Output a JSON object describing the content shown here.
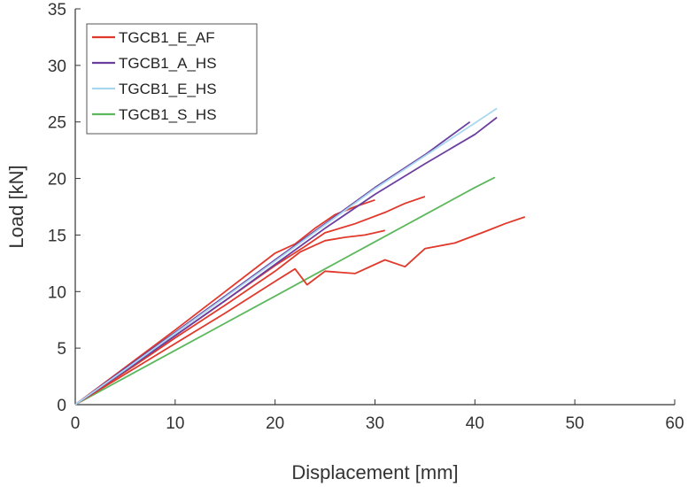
{
  "chart_data": {
    "type": "line",
    "title": "",
    "xlabel": "Displacement [mm]",
    "ylabel": "Load [kN]",
    "xlim": [
      0,
      60
    ],
    "ylim": [
      0,
      35
    ],
    "xticks": [
      0,
      10,
      20,
      30,
      40,
      50,
      60
    ],
    "yticks": [
      0,
      5,
      10,
      15,
      20,
      25,
      30,
      35
    ],
    "grid": false,
    "legend_position": "top-left",
    "legend": [
      {
        "name": "TGCB1_E_AF",
        "color": "#e0392b"
      },
      {
        "name": "TGCB1_A_HS",
        "color": "#6b3fa0"
      },
      {
        "name": "TGCB1_E_HS",
        "color": "#a8d8ef"
      },
      {
        "name": "TGCB1_S_HS",
        "color": "#5cb85c"
      }
    ],
    "series": [
      {
        "name": "TGCB1_E_AF",
        "color": "#e0392b",
        "x": [
          0,
          5,
          10,
          15,
          20,
          22,
          24,
          26,
          28,
          30
        ],
        "y": [
          0,
          3.3,
          6.6,
          10.0,
          13.4,
          14.2,
          15.6,
          16.8,
          17.5,
          18.1
        ]
      },
      {
        "name": "TGCB1_E_AF",
        "color": "#e0392b",
        "x": [
          0,
          5,
          10,
          15,
          20,
          23,
          25,
          28,
          31,
          33,
          35
        ],
        "y": [
          0,
          3.0,
          6.1,
          9.2,
          12.3,
          14.0,
          15.2,
          16.0,
          17.0,
          17.8,
          18.4
        ]
      },
      {
        "name": "TGCB1_E_AF",
        "color": "#e0392b",
        "x": [
          0,
          5,
          10,
          15,
          20,
          22.5,
          25,
          27,
          29,
          30,
          31
        ],
        "y": [
          0,
          2.9,
          5.9,
          8.8,
          11.8,
          13.5,
          14.5,
          14.8,
          15.0,
          15.2,
          15.4
        ]
      },
      {
        "name": "TGCB1_E_AF",
        "color": "#e0392b",
        "x": [
          0,
          5,
          10,
          15,
          20,
          22,
          23.2,
          25,
          28,
          31,
          33,
          35,
          38,
          41,
          43,
          45
        ],
        "y": [
          0,
          2.7,
          5.4,
          8.1,
          10.9,
          12.0,
          10.6,
          11.8,
          11.6,
          12.8,
          12.2,
          13.8,
          14.3,
          15.3,
          16.0,
          16.6
        ]
      },
      {
        "name": "TGCB1_A_HS",
        "color": "#6b3fa0",
        "x": [
          0,
          5,
          10,
          15,
          20,
          25,
          30,
          35,
          39.5
        ],
        "y": [
          0,
          3.2,
          6.4,
          9.6,
          12.8,
          16.0,
          19.2,
          22.1,
          25.0
        ]
      },
      {
        "name": "TGCB1_A_HS",
        "color": "#6b3fa0",
        "x": [
          0,
          5,
          10,
          15,
          20,
          25,
          30,
          35,
          40,
          42.2
        ],
        "y": [
          0,
          3.0,
          6.1,
          9.2,
          12.4,
          15.6,
          18.6,
          21.3,
          23.9,
          25.4
        ]
      },
      {
        "name": "TGCB1_E_HS",
        "color": "#a8d8ef",
        "x": [
          0,
          5,
          10,
          15,
          20,
          25,
          30,
          35,
          40,
          42.2
        ],
        "y": [
          0,
          3.1,
          6.3,
          9.5,
          12.7,
          15.9,
          19.1,
          22.0,
          24.9,
          26.2
        ]
      },
      {
        "name": "TGCB1_S_HS",
        "color": "#5cb85c",
        "x": [
          0,
          5,
          10,
          15,
          20,
          25,
          30,
          35,
          40,
          42
        ],
        "y": [
          0,
          2.4,
          4.8,
          7.2,
          9.6,
          12.0,
          14.4,
          16.8,
          19.2,
          20.1
        ]
      }
    ]
  }
}
